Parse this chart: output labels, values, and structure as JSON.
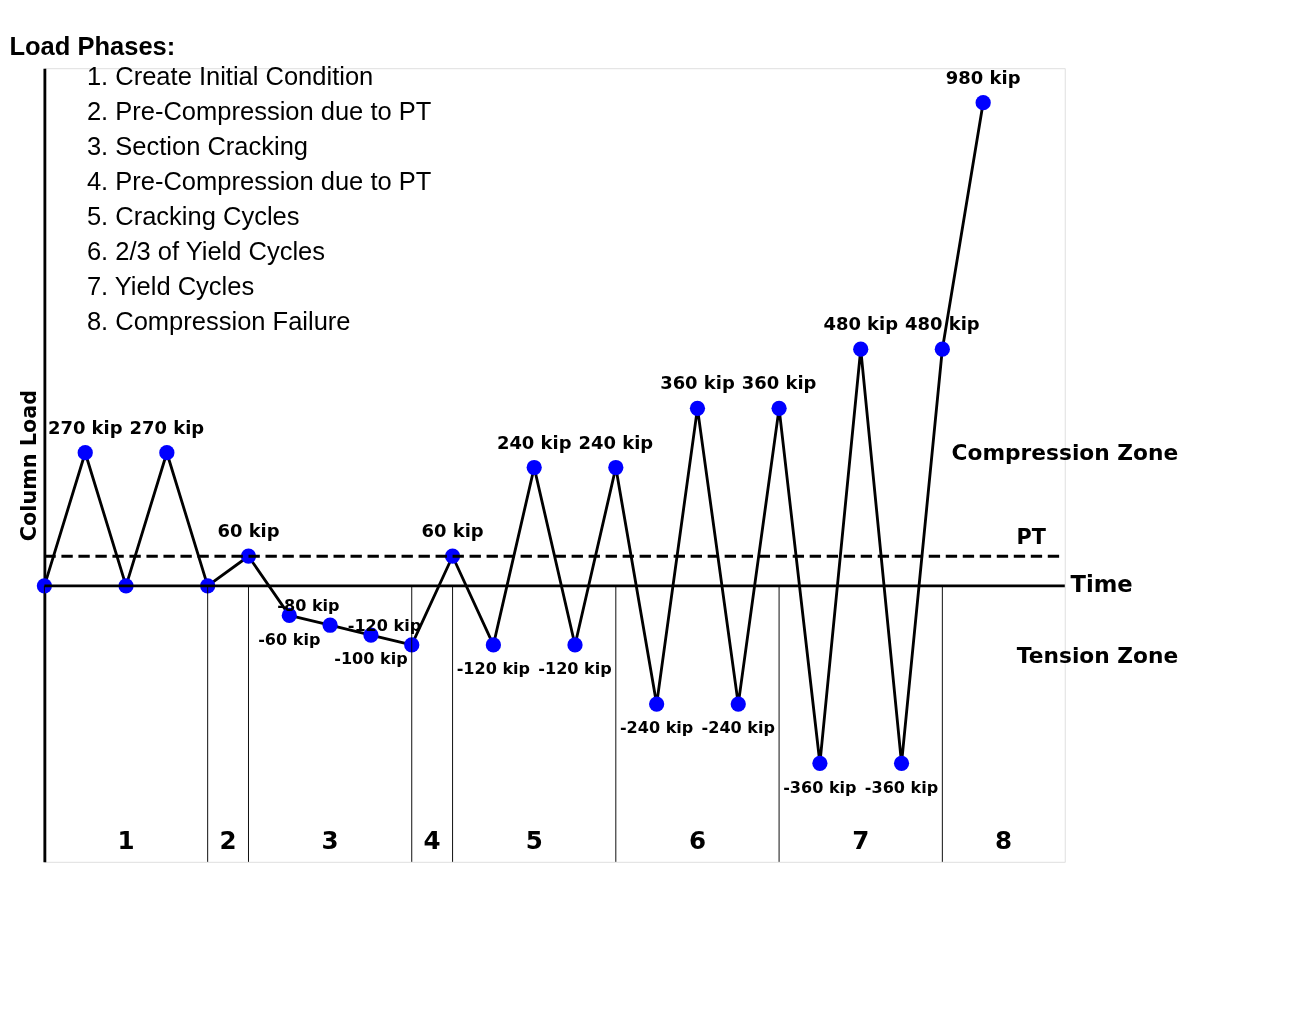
{
  "chart_data": {
    "type": "line",
    "title": "Load Phases:",
    "xlabel": "Time",
    "ylabel": "Column Load",
    "categories": [
      null,
      null,
      null,
      null,
      null,
      null,
      null,
      null,
      null,
      null,
      null,
      null,
      null,
      null,
      null,
      null,
      null,
      null,
      null,
      null,
      null,
      null,
      null,
      null
    ],
    "series": [
      {
        "color": "#000000",
        "values": [
          0,
          270,
          0,
          270,
          0,
          60,
          -60,
          -80,
          -100,
          -120,
          60,
          -120,
          240,
          -120,
          240,
          -240,
          360,
          -240,
          360,
          -360,
          480,
          -360,
          480,
          980
        ],
        "value_labels": [
          null,
          "270 kip",
          null,
          "270 kip",
          null,
          "60 kip",
          "-60 kip",
          "-80 kip",
          "-100 kip",
          "-120 kip",
          "60 kip",
          "-120 kip",
          "240 kip",
          "-120 kip",
          "240 kip",
          "-240 kip",
          "360 kip",
          "-240 kip",
          "360 kip",
          "-360 kip",
          "480 kip",
          "-360 kip",
          "480 kip",
          "980 kip"
        ]
      }
    ],
    "ylim": [
      -560,
      1050
    ],
    "tick_labels": false,
    "marker": "circle",
    "line_style": "solid",
    "ref_lines": [
      {
        "axis": "y",
        "value": 60,
        "label": "PT",
        "color": "#000000",
        "line_style": "dashed"
      }
    ],
    "annotations": [
      "1.  Create Initial Condition",
      "2.  Pre-Compression due to PT",
      "3.  Section Cracking",
      "4.  Pre-Compression due to PT",
      "5.  Cracking Cycles",
      "6.  2/3 of Yield Cycles",
      "7.  Yield Cycles",
      "8.  Compression Failure",
      "Compression Zone",
      "Tension Zone",
      "1",
      "2",
      "3",
      "4",
      "5",
      "6",
      "7",
      "8"
    ]
  }
}
